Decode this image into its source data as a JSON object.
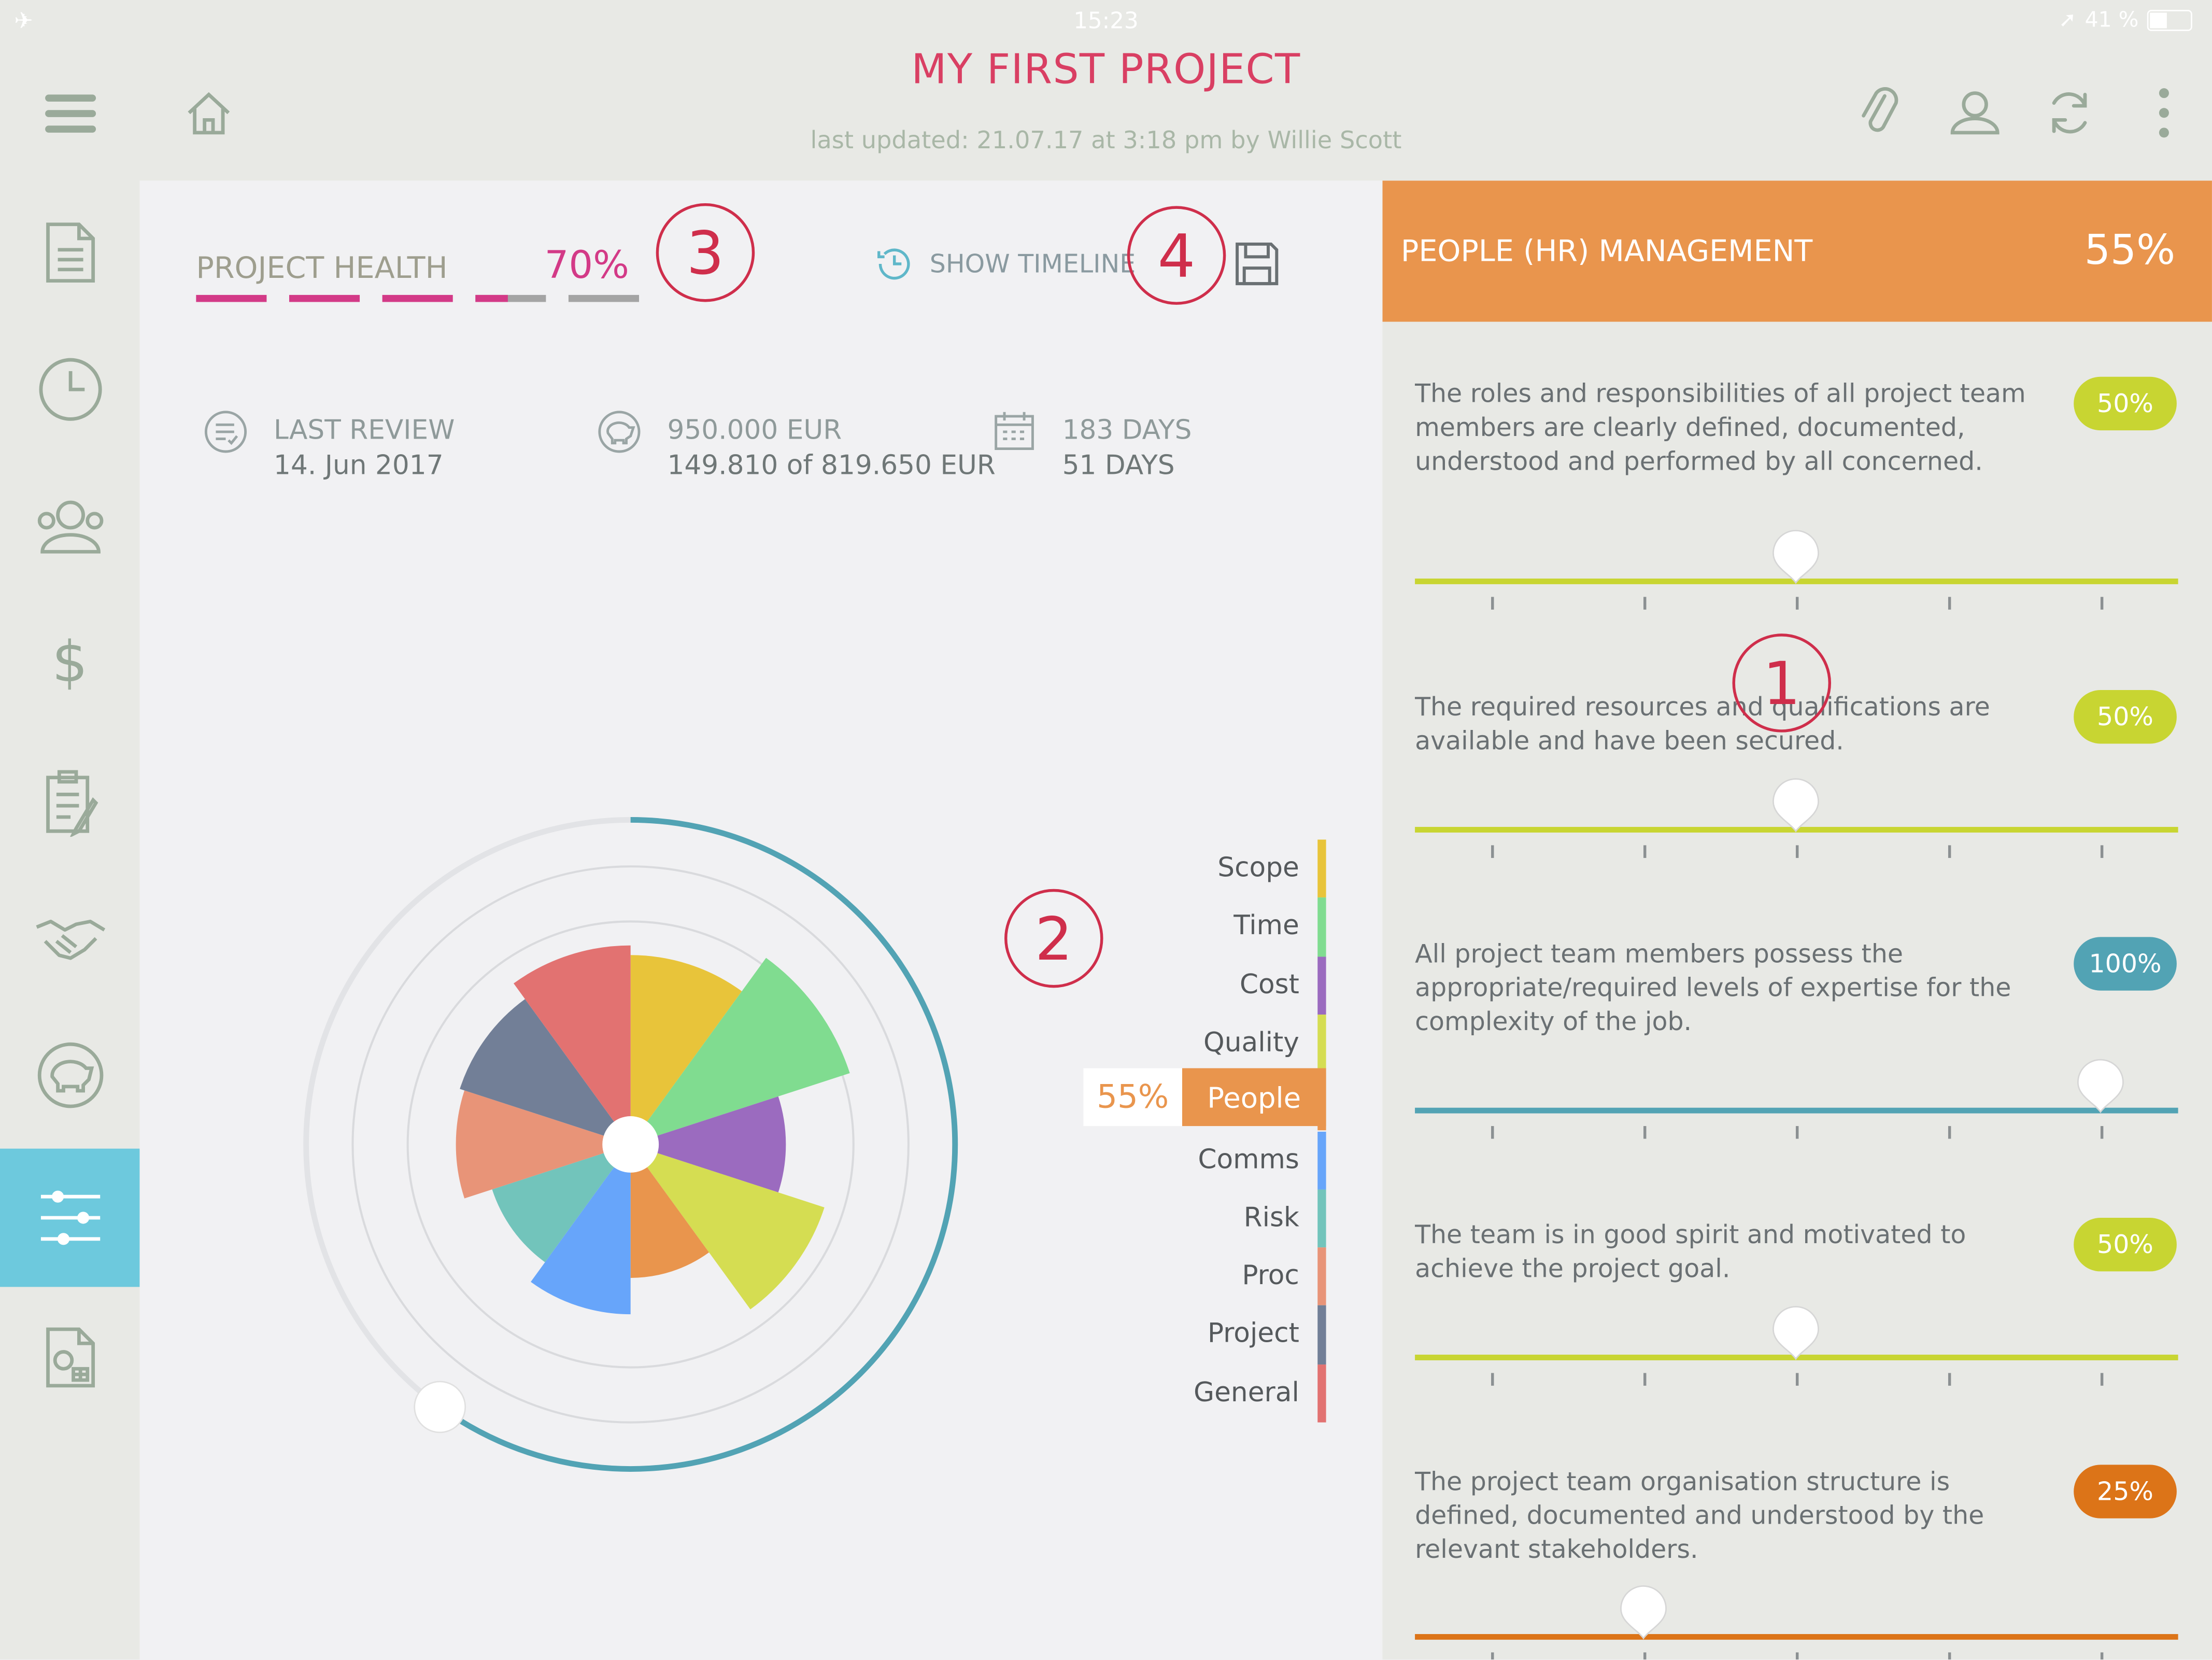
{
  "status": {
    "time": "15:23",
    "battery": "41 %"
  },
  "header": {
    "title": "MY FIRST PROJECT",
    "subtitle": "last updated: 21.07.17 at 3:18 pm by Willie Scott"
  },
  "health": {
    "label": "PROJECT HEALTH",
    "percent_label": "70%",
    "bars": [
      1.0,
      1.0,
      1.0,
      0.45,
      0.0
    ],
    "timeline_label": "SHOW TIMELINE"
  },
  "stats": {
    "review": {
      "title": "LAST REVIEW",
      "value": "14. Jun 2017"
    },
    "budget": {
      "title": "950.000 EUR",
      "value": "149.810 of 819.650 EUR"
    },
    "days": {
      "title": "183 DAYS",
      "value": "51 DAYS"
    }
  },
  "annotations": [
    "1",
    "2",
    "3",
    "4"
  ],
  "chart_data": {
    "type": "polar-area",
    "selected": "People",
    "selected_label": "55%",
    "progress_fraction": 0.6,
    "categories": [
      {
        "name": "Scope",
        "color": "#e8c43a",
        "value": 0.78
      },
      {
        "name": "Time",
        "color": "#80dc90",
        "value": 0.95
      },
      {
        "name": "Cost",
        "color": "#9b6bbf",
        "value": 0.64
      },
      {
        "name": "Quality",
        "color": "#d5dd52",
        "value": 0.84
      },
      {
        "name": "People",
        "color": "#e9954d",
        "value": 0.55
      },
      {
        "name": "Comms",
        "color": "#67a5fa",
        "value": 0.7
      },
      {
        "name": "Risk",
        "color": "#72c4bb",
        "value": 0.6
      },
      {
        "name": "Proc",
        "color": "#e89478",
        "value": 0.72
      },
      {
        "name": "Project",
        "color": "#727f97",
        "value": 0.74
      },
      {
        "name": "General",
        "color": "#e27271",
        "value": 0.82
      }
    ]
  },
  "panel": {
    "title": "PEOPLE (HR) MANAGEMENT",
    "percent_label": "55%",
    "questions": [
      {
        "text": "The roles and responsibilities of all project team members are clearly defined, documented, understood and performed by all concerned.",
        "pill": "50%",
        "value": 0.5,
        "color": "#c8d532"
      },
      {
        "text": "The required resources and qualifications are available and have been secured.",
        "pill": "50%",
        "value": 0.5,
        "color": "#c8d532"
      },
      {
        "text": "All project team members possess the appropriate/required levels of expertise for the complexity of the job.",
        "pill": "100%",
        "value": 1.0,
        "color": "#52a3b4"
      },
      {
        "text": "The team is in good spirit and motivated to achieve the project goal.",
        "pill": "50%",
        "value": 0.5,
        "color": "#c8d532"
      },
      {
        "text": "The project team organisation structure is defined, documented and understood by the relevant stakeholders.",
        "pill": "25%",
        "value": 0.25,
        "color": "#dc7418"
      }
    ]
  },
  "icons": {
    "sidebar": [
      "document-icon",
      "clock-icon",
      "team-icon",
      "dollar-icon",
      "checklist-icon",
      "handshake-icon",
      "piggy-bank-icon",
      "sliders-icon",
      "report-icon"
    ],
    "header": [
      "menu-icon",
      "home-icon",
      "link-icon",
      "user-icon",
      "sync-icon",
      "more-icon"
    ]
  }
}
